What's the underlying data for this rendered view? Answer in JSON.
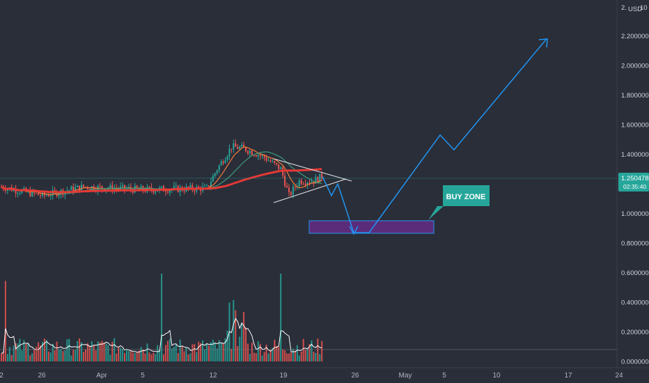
{
  "chart_data": {
    "type": "candlestick",
    "currency": "USD",
    "top_label": "2.",
    "top_label_extra": "10",
    "y_axis": {
      "price_ticks": [
        "2.200000",
        "2.000000",
        "1.800000",
        "1.600000",
        "1.400000",
        "1.000000",
        "0.800000",
        "0.600000",
        "0.400000",
        "0.200000",
        "0.000000"
      ],
      "price_values": [
        2.2,
        2.0,
        1.8,
        1.6,
        1.4,
        1.0,
        0.8,
        0.6,
        0.4,
        0.2,
        0.0
      ]
    },
    "x_axis": {
      "ticks": [
        "2",
        "26",
        "Apr",
        "5",
        "12",
        "19",
        "26",
        "May",
        "5",
        "10",
        "17",
        "24"
      ]
    },
    "last_price": {
      "value": "1.250478",
      "countdown": "02:35:40",
      "color": "#26a69a"
    },
    "annotation": {
      "label": "BUY ZONE",
      "color": "#26a69a"
    },
    "buy_zone": {
      "low": 0.88,
      "high": 0.96
    },
    "projection_path_prices": [
      1.25,
      1.12,
      1.2,
      0.87,
      0.87,
      1.53,
      1.43,
      2.18
    ],
    "colors": {
      "up": "#26a69a",
      "down": "#ef5350",
      "ma_fast": "#f57c3a",
      "ma_mid": "#3e9b7a",
      "ma_slow": "#e53935",
      "projection": "#2196f3",
      "buy_zone_fill": "#5b2c7a"
    }
  }
}
